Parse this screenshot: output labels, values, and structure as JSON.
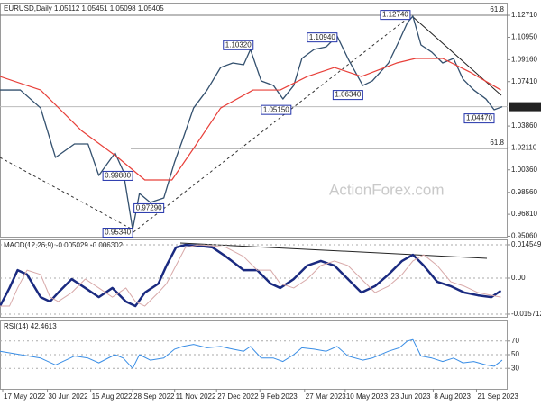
{
  "chart_data": [
    {
      "type": "line",
      "title": "EURUSD,Daily  1.05112 1.05451 1.05098 1.05405",
      "watermark": "ActionForex.com",
      "xlim": [
        0,
        375
      ],
      "ylim": [
        0.9502,
        1.1372
      ],
      "yticks": [
        {
          "value": 1.1271,
          "label": "1.12710"
        },
        {
          "value": 1.1095,
          "label": "1.10950"
        },
        {
          "value": 1.0916,
          "label": "1.09160"
        },
        {
          "value": 1.0741,
          "label": "1.07410"
        },
        {
          "value": 1.0386,
          "label": "1.03860"
        },
        {
          "value": 1.0211,
          "label": "1.02110"
        },
        {
          "value": 1.0036,
          "label": "1.00360"
        },
        {
          "value": 0.9856,
          "label": "0.98560"
        },
        {
          "value": 0.9681,
          "label": "0.96810"
        },
        {
          "value": 0.9506,
          "label": "0.95060"
        }
      ],
      "last_price": {
        "value": 1.05405,
        "label": "1.05405"
      },
      "levels": [
        {
          "label": "61.8",
          "value": 1.1271
        },
        {
          "label": "61.8",
          "value": 1.0207
        }
      ],
      "annotations": [
        {
          "label": "1.12740",
          "value": 1.1274,
          "x": 303
        },
        {
          "label": "1.10320",
          "value": 1.1032,
          "x": 187
        },
        {
          "label": "1.10940",
          "value": 1.1094,
          "x": 249
        },
        {
          "label": "1.06340",
          "value": 1.0634,
          "x": 268
        },
        {
          "label": "1.05150",
          "value": 1.0515,
          "x": 215
        },
        {
          "label": "1.04470",
          "value": 1.0447,
          "x": 365
        },
        {
          "label": "0.95340",
          "value": 0.9534,
          "x": 98
        },
        {
          "label": "0.97290",
          "value": 0.9729,
          "x": 121
        },
        {
          "label": "0.99880",
          "value": 0.9988,
          "x": 98
        }
      ],
      "series": [
        {
          "color": "#33506e",
          "line_width": 1.3,
          "x": [
            0,
            15,
            30,
            41,
            55,
            65,
            73,
            85,
            91,
            98,
            103,
            111,
            121,
            129,
            135,
            143,
            153,
            163,
            172,
            180,
            185,
            193,
            202,
            209,
            217,
            223,
            232,
            241,
            249,
            257,
            268,
            275,
            287,
            295,
            301,
            305,
            311,
            319,
            327,
            335,
            342,
            350,
            359,
            365,
            371
          ],
          "values": [
            1.0674,
            1.0674,
            1.053,
            1.0135,
            1.0243,
            1.0243,
            0.9991,
            1.0171,
            1.0027,
            0.956,
            0.9847,
            0.9775,
            0.9811,
            1.0099,
            1.0279,
            1.053,
            1.0674,
            1.0854,
            1.089,
            1.0876,
            1.0998,
            1.0746,
            1.071,
            1.0602,
            1.071,
            1.0926,
            1.0998,
            1.1019,
            1.1106,
            1.0926,
            1.071,
            1.0746,
            1.089,
            1.107,
            1.1213,
            1.1264,
            1.1034,
            1.0976,
            1.089,
            1.0926,
            1.0761,
            1.0674,
            1.0602,
            1.0516,
            1.054
          ]
        },
        {
          "color": "#e8403a",
          "line_width": 1.2,
          "x": [
            0,
            30,
            60,
            87,
            107,
            127,
            143,
            163,
            187,
            207,
            227,
            247,
            267,
            293,
            307,
            327,
            347,
            370
          ],
          "values": [
            1.0782,
            1.0674,
            1.0351,
            1.0135,
            0.9955,
            0.9955,
            1.0207,
            1.053,
            1.0674,
            1.0674,
            1.0782,
            1.0854,
            1.0782,
            1.089,
            1.0926,
            1.0926,
            1.0818,
            1.0674
          ]
        }
      ]
    },
    {
      "type": "line",
      "title": "MACD(12,26,9) -0.005029 -0.006302",
      "grid": true,
      "xlim": [
        0,
        375
      ],
      "ylim": [
        -0.0169,
        0.0169
      ],
      "yticks": [
        0.014549,
        {
          "value": 0,
          "label": "0.00"
        },
        -0.015712
      ],
      "series": [
        {
          "color": "#1a2a80",
          "line_width": 2.5,
          "x": [
            0,
            7,
            13,
            20,
            30,
            37,
            43,
            53,
            63,
            73,
            83,
            93,
            100,
            107,
            117,
            123,
            130,
            137,
            147,
            157,
            167,
            180,
            190,
            200,
            207,
            217,
            227,
            237,
            247,
            257,
            267,
            277,
            287,
            297,
            305,
            313,
            323,
            333,
            343,
            353,
            363,
            370
          ],
          "values": [
            -0.0122,
            -0.0043,
            0.0035,
            0.0016,
            -0.0083,
            -0.0102,
            -0.0063,
            -0.0004,
            -0.0043,
            -0.0083,
            -0.0043,
            -0.0102,
            -0.0122,
            -0.0063,
            -0.0024,
            0.0055,
            0.0134,
            0.0145,
            0.0141,
            0.0134,
            0.0094,
            0.0035,
            0.0035,
            -0.0024,
            -0.0043,
            -0.0004,
            0.0055,
            0.0075,
            0.0055,
            -0.0004,
            -0.0063,
            -0.0035,
            0.0016,
            0.0075,
            0.0102,
            0.0055,
            -0.0016,
            -0.0035,
            -0.0063,
            -0.0075,
            -0.0083,
            -0.0055
          ]
        },
        {
          "color": "#d8a9a9",
          "line_width": 1,
          "x": [
            0,
            7,
            13,
            20,
            30,
            37,
            43,
            53,
            63,
            73,
            83,
            93,
            100,
            107,
            117,
            123,
            130,
            137,
            147,
            157,
            167,
            180,
            190,
            200,
            207,
            217,
            227,
            237,
            247,
            257,
            267,
            277,
            287,
            297,
            305,
            313,
            323,
            333,
            343,
            353,
            363,
            370
          ],
          "values": [
            -0.0122,
            -0.0122,
            -0.0043,
            0.0035,
            0.0016,
            -0.0083,
            -0.0102,
            -0.0063,
            -0.0004,
            -0.0043,
            -0.0083,
            -0.0043,
            -0.0102,
            -0.0122,
            -0.0063,
            -0.0024,
            0.0055,
            0.0134,
            0.0145,
            0.0141,
            0.0134,
            0.0094,
            0.0035,
            0.0035,
            -0.0024,
            -0.0043,
            -0.0004,
            0.0055,
            0.0075,
            0.0055,
            -0.0004,
            -0.0063,
            -0.0035,
            0.0016,
            0.0075,
            0.0102,
            0.0055,
            -0.0016,
            -0.0035,
            -0.0063,
            -0.0075,
            -0.0083
          ]
        }
      ]
    },
    {
      "type": "line",
      "title": "RSI(14) 42.4613",
      "grid": true,
      "xlim": [
        0,
        375
      ],
      "ylim": [
        0,
        100
      ],
      "yticks": [
        30,
        50,
        70
      ],
      "xticks": [
        {
          "value": 2,
          "label": "17 May 2022"
        },
        {
          "value": 35,
          "label": "30 Jun 2022"
        },
        {
          "value": 67,
          "label": "15 Aug 2022"
        },
        {
          "value": 98,
          "label": "28 Sep 2022"
        },
        {
          "value": 129,
          "label": "11 Nov 2022"
        },
        {
          "value": 160,
          "label": "27 Dec 2022"
        },
        {
          "value": 192,
          "label": "9 Feb 2023"
        },
        {
          "value": 225,
          "label": "27 Mar 2023"
        },
        {
          "value": 255,
          "label": "10 May 2023"
        },
        {
          "value": 288,
          "label": "23 Jun 2023"
        },
        {
          "value": 320,
          "label": "8 Aug 2023"
        },
        {
          "value": 352,
          "label": "21 Sep 2023"
        }
      ],
      "series": [
        {
          "color": "#3a8ee6",
          "line_width": 1,
          "x": [
            0,
            15,
            30,
            41,
            55,
            65,
            73,
            85,
            91,
            98,
            103,
            111,
            121,
            129,
            135,
            143,
            153,
            163,
            172,
            180,
            185,
            193,
            202,
            209,
            217,
            223,
            232,
            241,
            249,
            257,
            268,
            275,
            287,
            295,
            301,
            305,
            311,
            319,
            327,
            335,
            342,
            350,
            359,
            365,
            371
          ],
          "values": [
            55,
            50,
            45,
            35,
            48,
            45,
            38,
            50,
            45,
            30,
            50,
            42,
            45,
            58,
            62,
            65,
            60,
            62,
            58,
            55,
            62,
            45,
            45,
            40,
            50,
            60,
            58,
            55,
            62,
            48,
            42,
            45,
            55,
            60,
            70,
            72,
            48,
            45,
            40,
            45,
            38,
            40,
            35,
            33,
            42
          ]
        }
      ]
    }
  ]
}
